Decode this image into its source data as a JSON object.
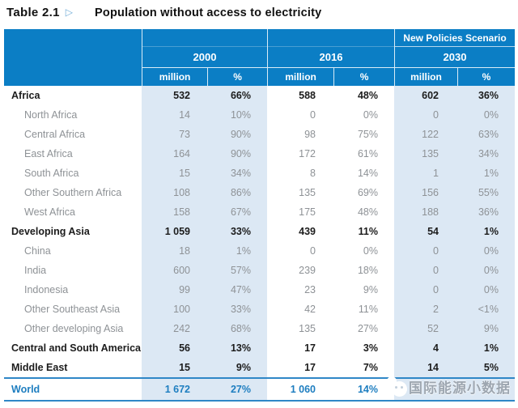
{
  "title": {
    "prefix": "Table 2.1",
    "marker": "▷",
    "text": "Population without access to electricity"
  },
  "table": {
    "region_header": "",
    "groups": [
      {
        "scenario": "",
        "year": "2000",
        "sub_million": "million",
        "sub_percent": "%"
      },
      {
        "scenario": "",
        "year": "2016",
        "sub_million": "million",
        "sub_percent": "%"
      },
      {
        "scenario": "New Policies Scenario",
        "year": "2030",
        "sub_million": "million",
        "sub_percent": "%"
      }
    ],
    "rows": [
      {
        "name": "Africa",
        "level": "main",
        "m2000": "532",
        "p2000": "66%",
        "m2016": "588",
        "p2016": "48%",
        "m2030": "602",
        "p2030": "36%"
      },
      {
        "name": "North Africa",
        "level": "sub",
        "m2000": "14",
        "p2000": "10%",
        "m2016": "0",
        "p2016": "0%",
        "m2030": "0",
        "p2030": "0%"
      },
      {
        "name": "Central Africa",
        "level": "sub",
        "m2000": "73",
        "p2000": "90%",
        "m2016": "98",
        "p2016": "75%",
        "m2030": "122",
        "p2030": "63%"
      },
      {
        "name": "East Africa",
        "level": "sub",
        "m2000": "164",
        "p2000": "90%",
        "m2016": "172",
        "p2016": "61%",
        "m2030": "135",
        "p2030": "34%"
      },
      {
        "name": "South Africa",
        "level": "sub",
        "m2000": "15",
        "p2000": "34%",
        "m2016": "8",
        "p2016": "14%",
        "m2030": "1",
        "p2030": "1%"
      },
      {
        "name": "Other Southern Africa",
        "level": "sub",
        "m2000": "108",
        "p2000": "86%",
        "m2016": "135",
        "p2016": "69%",
        "m2030": "156",
        "p2030": "55%"
      },
      {
        "name": "West Africa",
        "level": "sub",
        "m2000": "158",
        "p2000": "67%",
        "m2016": "175",
        "p2016": "48%",
        "m2030": "188",
        "p2030": "36%"
      },
      {
        "name": "Developing Asia",
        "level": "main",
        "m2000": "1 059",
        "p2000": "33%",
        "m2016": "439",
        "p2016": "11%",
        "m2030": "54",
        "p2030": "1%"
      },
      {
        "name": "China",
        "level": "sub",
        "m2000": "18",
        "p2000": "1%",
        "m2016": "0",
        "p2016": "0%",
        "m2030": "0",
        "p2030": "0%"
      },
      {
        "name": "India",
        "level": "sub",
        "m2000": "600",
        "p2000": "57%",
        "m2016": "239",
        "p2016": "18%",
        "m2030": "0",
        "p2030": "0%"
      },
      {
        "name": "Indonesia",
        "level": "sub",
        "m2000": "99",
        "p2000": "47%",
        "m2016": "23",
        "p2016": "9%",
        "m2030": "0",
        "p2030": "0%"
      },
      {
        "name": "Other Southeast Asia",
        "level": "sub",
        "m2000": "100",
        "p2000": "33%",
        "m2016": "42",
        "p2016": "11%",
        "m2030": "2",
        "p2030": "<1%"
      },
      {
        "name": "Other developing Asia",
        "level": "sub",
        "m2000": "242",
        "p2000": "68%",
        "m2016": "135",
        "p2016": "27%",
        "m2030": "52",
        "p2030": "9%"
      },
      {
        "name": "Central and South America",
        "level": "main",
        "m2000": "56",
        "p2000": "13%",
        "m2016": "17",
        "p2016": "3%",
        "m2030": "4",
        "p2030": "1%"
      },
      {
        "name": "Middle East",
        "level": "main",
        "m2000": "15",
        "p2000": "9%",
        "m2016": "17",
        "p2016": "7%",
        "m2030": "14",
        "p2030": "5%"
      }
    ],
    "world": {
      "name": "World",
      "m2000": "1 672",
      "p2000": "27%",
      "m2016": "1 060",
      "p2016": "14%",
      "m2030": "",
      "p2030": ""
    }
  },
  "watermark": {
    "logo": "wechat-account-logo",
    "text": "国际能源小数据"
  },
  "colors": {
    "header_blue": "#0b7ec5",
    "light_column": "#dce8f4",
    "main_text": "#1c1c1c",
    "sub_text": "#8e9296",
    "world_blue": "#1e7ec0",
    "rule_blue": "#2f87c7",
    "marker_blue": "#74aed8",
    "watermark_gray": "#98a1ab"
  },
  "chart_data": {
    "type": "table",
    "title": "Table 2.1 ▷ Population without access to electricity",
    "column_groups": [
      "2000",
      "2016",
      "New Policies Scenario 2030"
    ],
    "columns": [
      "Region",
      "2000 million",
      "2000 %",
      "2016 million",
      "2016 %",
      "2030 million",
      "2030 %"
    ],
    "rows": [
      [
        "Africa",
        532,
        "66%",
        588,
        "48%",
        602,
        "36%"
      ],
      [
        "North Africa",
        14,
        "10%",
        0,
        "0%",
        0,
        "0%"
      ],
      [
        "Central Africa",
        73,
        "90%",
        98,
        "75%",
        122,
        "63%"
      ],
      [
        "East Africa",
        164,
        "90%",
        172,
        "61%",
        135,
        "34%"
      ],
      [
        "South Africa",
        15,
        "34%",
        8,
        "14%",
        1,
        "1%"
      ],
      [
        "Other Southern Africa",
        108,
        "86%",
        135,
        "69%",
        156,
        "55%"
      ],
      [
        "West Africa",
        158,
        "67%",
        175,
        "48%",
        188,
        "36%"
      ],
      [
        "Developing Asia",
        1059,
        "33%",
        439,
        "11%",
        54,
        "1%"
      ],
      [
        "China",
        18,
        "1%",
        0,
        "0%",
        0,
        "0%"
      ],
      [
        "India",
        600,
        "57%",
        239,
        "18%",
        0,
        "0%"
      ],
      [
        "Indonesia",
        99,
        "47%",
        23,
        "9%",
        0,
        "0%"
      ],
      [
        "Other Southeast Asia",
        100,
        "33%",
        42,
        "11%",
        2,
        "<1%"
      ],
      [
        "Other developing Asia",
        242,
        "68%",
        135,
        "27%",
        52,
        "9%"
      ],
      [
        "Central and South America",
        56,
        "13%",
        17,
        "3%",
        4,
        "1%"
      ],
      [
        "Middle East",
        15,
        "9%",
        17,
        "7%",
        14,
        "5%"
      ],
      [
        "World",
        1672,
        "27%",
        1060,
        "14%",
        null,
        null
      ]
    ]
  }
}
